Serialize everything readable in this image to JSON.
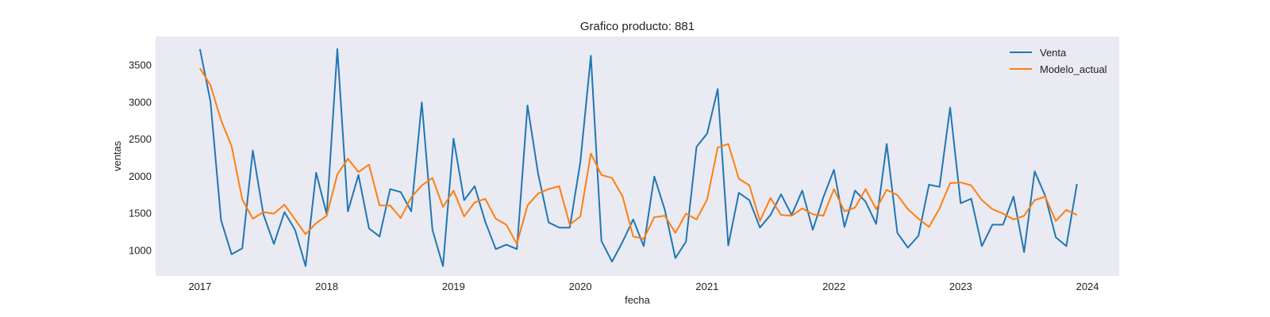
{
  "chart_data": {
    "type": "line",
    "title": "Grafico producto: 881",
    "xlabel": "fecha",
    "ylabel": "ventas",
    "x_tick_labels": [
      "2017",
      "2018",
      "2019",
      "2020",
      "2021",
      "2022",
      "2023",
      "2024"
    ],
    "y_tick_labels": [
      "1000",
      "1500",
      "2000",
      "2500",
      "3000",
      "3500"
    ],
    "x_ticks": [
      2017,
      2018,
      2019,
      2020,
      2021,
      2022,
      2023,
      2024
    ],
    "y_ticks": [
      1000,
      1500,
      2000,
      2500,
      3000,
      3500
    ],
    "xlim": [
      2016.65,
      2024.25
    ],
    "ylim": [
      650,
      3880
    ],
    "grid": false,
    "legend": "top-right",
    "background": "#eaeaf2",
    "series": [
      {
        "name": "Venta",
        "color": "#1f77b4",
        "values": [
          3710,
          3000,
          1400,
          940,
          1020,
          2340,
          1480,
          1080,
          1510,
          1270,
          780,
          2040,
          1480,
          3710,
          1520,
          2010,
          1290,
          1180,
          1820,
          1780,
          1520,
          2990,
          1270,
          780,
          2500,
          1670,
          1860,
          1380,
          1010,
          1070,
          1010,
          2950,
          2030,
          1370,
          1300,
          1300,
          2180,
          3620,
          1120,
          840,
          1110,
          1410,
          1050,
          1990,
          1540,
          890,
          1110,
          2390,
          2570,
          3170,
          1060,
          1770,
          1670,
          1300,
          1470,
          1750,
          1470,
          1800,
          1270,
          1710,
          2080,
          1310,
          1800,
          1650,
          1350,
          2430,
          1230,
          1030,
          1190,
          1880,
          1850,
          2920,
          1630,
          1690,
          1050,
          1340,
          1340,
          1720,
          970,
          2060,
          1730,
          1170,
          1050,
          1890
        ]
      },
      {
        "name": "Modelo_actual",
        "color": "#ff7f0e",
        "values": [
          3450,
          3220,
          2750,
          2400,
          1680,
          1420,
          1510,
          1490,
          1610,
          1410,
          1210,
          1360,
          1460,
          2020,
          2230,
          2050,
          2150,
          1600,
          1600,
          1430,
          1710,
          1870,
          1970,
          1580,
          1800,
          1450,
          1640,
          1690,
          1420,
          1340,
          1080,
          1600,
          1760,
          1820,
          1860,
          1340,
          1450,
          2300,
          2010,
          1970,
          1720,
          1180,
          1150,
          1440,
          1460,
          1230,
          1490,
          1410,
          1680,
          2380,
          2430,
          1960,
          1870,
          1390,
          1700,
          1470,
          1460,
          1560,
          1480,
          1460,
          1820,
          1520,
          1570,
          1820,
          1550,
          1810,
          1740,
          1550,
          1420,
          1310,
          1560,
          1900,
          1910,
          1870,
          1670,
          1550,
          1490,
          1410,
          1460,
          1670,
          1720,
          1390,
          1540,
          1470
        ]
      }
    ]
  }
}
